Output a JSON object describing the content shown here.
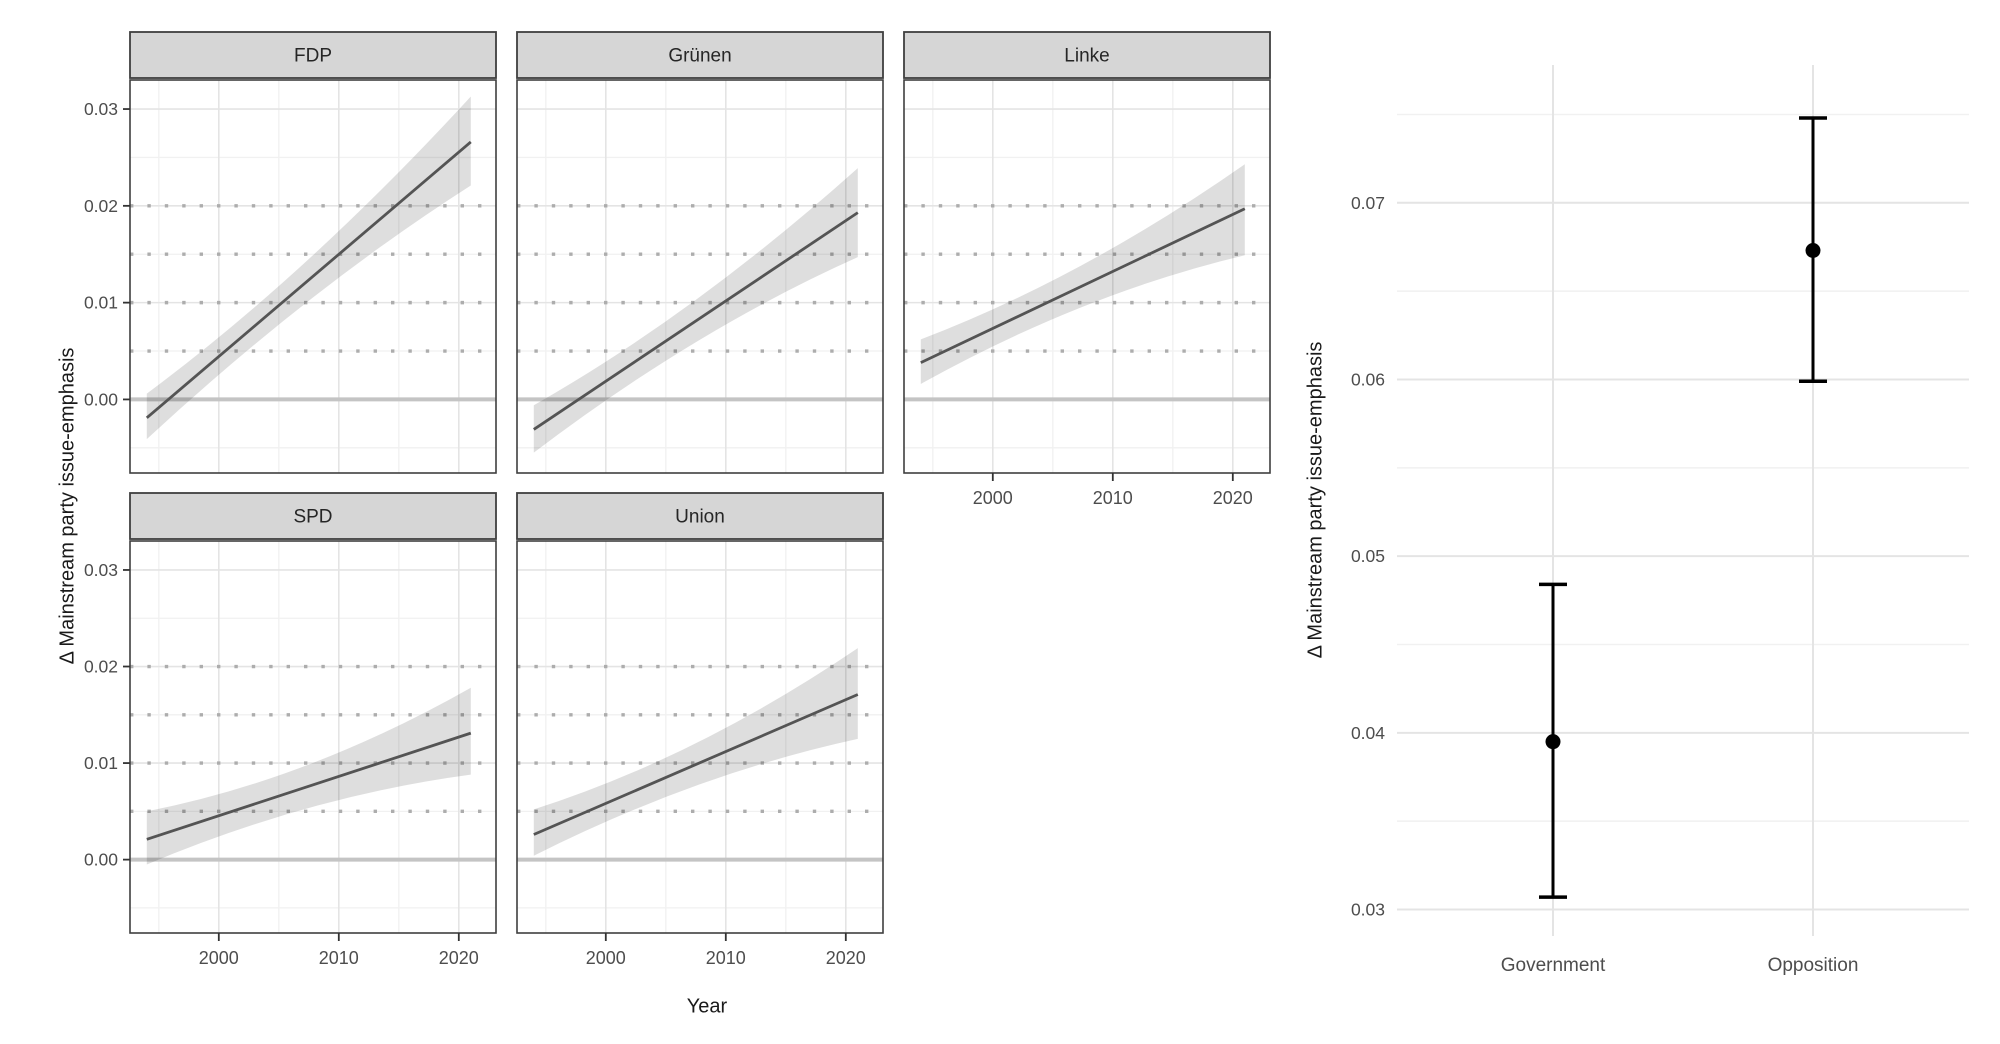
{
  "style": {
    "background": "#ffffff",
    "grid_major": "#e4e4e4",
    "grid_minor": "#f1f1f1",
    "panel_border": "#3f3f3f",
    "strip_bg": "#d6d6d6",
    "strip_text": "#262626",
    "trend_line": "#545454",
    "ribbon": "rgba(0,0,0,0.13)",
    "zero_line": "#c4c4c4",
    "dotted_line": "#adadad",
    "tick_mark": "#333333",
    "tick_label": "#4d4d4d",
    "axis_title": "#1a1a1a",
    "point": "#000000"
  },
  "chart_data": [
    {
      "type": "line",
      "title": "",
      "xlabel": "Year",
      "ylabel": "Δ Mainstream party issue-emphasis",
      "facets": [
        "FDP",
        "Grünen",
        "Linke",
        "SPD",
        "Union"
      ],
      "x_ticks": [
        2000,
        2010,
        2020
      ],
      "x_tick_labels": [
        "2000",
        "2010",
        "2020"
      ],
      "x_minor": [
        1995,
        2005,
        2015
      ],
      "xlim": [
        1992.6,
        2023.1
      ],
      "y_ticks": [
        0.0,
        0.01,
        0.02,
        0.03
      ],
      "y_tick_labels": [
        "0.00",
        "0.01",
        "0.02",
        "0.03"
      ],
      "y_minor": [
        -0.005,
        0.005,
        0.015,
        0.025
      ],
      "ylim": [
        -0.0076,
        0.033
      ],
      "grid": true,
      "legend": false,
      "dotted_reference_lines": [
        0.005,
        0.01,
        0.015,
        0.02
      ],
      "zero_reference_line": 0.0,
      "x_data_range": [
        1994,
        2021
      ],
      "ribbon_mid_pinch": 0.62,
      "series": [
        {
          "name": "FDP",
          "line_start": -0.0019,
          "line_end": 0.0266,
          "ci_start": [
            -0.0041,
            0.0006
          ],
          "ci_end": [
            0.0221,
            0.0313
          ]
        },
        {
          "name": "Grünen",
          "line_start": -0.0031,
          "line_end": 0.0193,
          "ci_start": [
            -0.0055,
            -0.0006
          ],
          "ci_end": [
            0.0147,
            0.0239
          ]
        },
        {
          "name": "Linke",
          "line_start": 0.0038,
          "line_end": 0.0197,
          "ci_start": [
            0.0016,
            0.0062
          ],
          "ci_end": [
            0.0149,
            0.0243
          ]
        },
        {
          "name": "SPD",
          "line_start": 0.0021,
          "line_end": 0.0131,
          "ci_start": [
            -0.0005,
            0.005
          ],
          "ci_end": [
            0.0088,
            0.0178
          ]
        },
        {
          "name": "Union",
          "line_start": 0.0026,
          "line_end": 0.0171,
          "ci_start": [
            0.0004,
            0.0052
          ],
          "ci_end": [
            0.0125,
            0.0219
          ]
        }
      ]
    },
    {
      "type": "scatter",
      "subtype": "pointrange",
      "title": "",
      "xlabel": "",
      "ylabel": "Δ Mainstream party issue-emphasis",
      "categories": [
        "Government",
        "Opposition"
      ],
      "points": [
        0.0395,
        0.0673
      ],
      "ci_low": [
        0.0307,
        0.0599
      ],
      "ci_high": [
        0.0484,
        0.0748
      ],
      "y_ticks": [
        0.03,
        0.04,
        0.05,
        0.06,
        0.07
      ],
      "y_tick_labels": [
        "0.03",
        "0.04",
        "0.05",
        "0.06",
        "0.07"
      ],
      "y_minor": [
        0.035,
        0.045,
        0.055,
        0.065,
        0.075
      ],
      "ylim": [
        0.0285,
        0.0778
      ],
      "grid": true,
      "legend": false
    }
  ]
}
